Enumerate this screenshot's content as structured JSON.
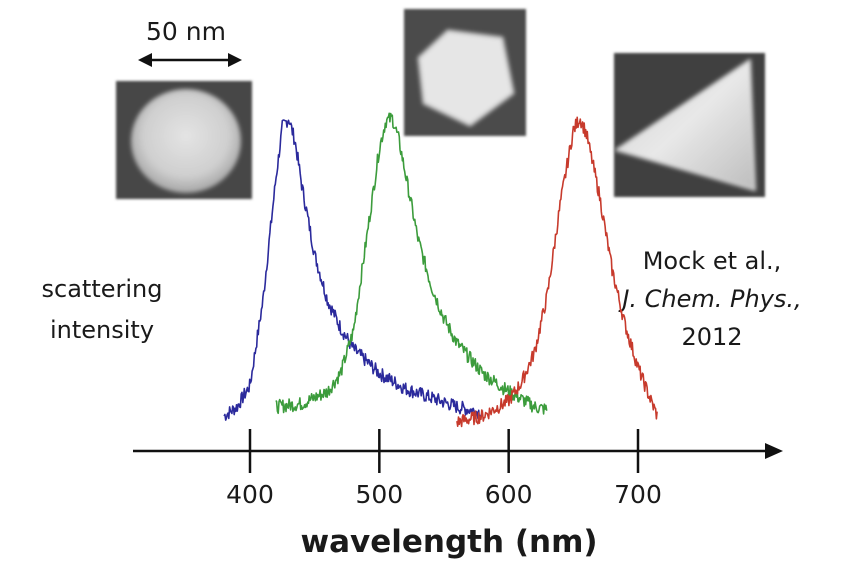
{
  "chart_data": {
    "type": "line",
    "xlabel": "wavelength (nm)",
    "ylabel": "scattering intensity",
    "ylabel_lines": [
      "scattering",
      "intensity"
    ],
    "xlim": [
      300,
      800
    ],
    "ylim": [
      0,
      1
    ],
    "xticks": [
      400,
      500,
      600,
      700
    ],
    "xtick_labels": [
      "400",
      "500",
      "600",
      "700"
    ],
    "grid": false,
    "series": [
      {
        "color": "#2b2a9c",
        "shape": "sphere",
        "x": [
          380,
          390,
          400,
          410,
          420,
          425,
          430,
          435,
          440,
          450,
          460,
          470,
          480,
          500,
          520,
          540,
          560,
          580
        ],
        "y": [
          0.02,
          0.05,
          0.12,
          0.4,
          0.8,
          0.97,
          1.0,
          0.92,
          0.78,
          0.55,
          0.4,
          0.31,
          0.24,
          0.16,
          0.11,
          0.08,
          0.05,
          0.03
        ]
      },
      {
        "color": "#3c9c3c",
        "shape": "pentagonal bipyramid",
        "x": [
          420,
          440,
          460,
          470,
          480,
          490,
          500,
          505,
          510,
          515,
          520,
          530,
          540,
          550,
          560,
          580,
          600,
          620,
          630
        ],
        "y": [
          0.05,
          0.06,
          0.1,
          0.16,
          0.3,
          0.6,
          0.9,
          0.99,
          1.0,
          0.93,
          0.82,
          0.6,
          0.45,
          0.34,
          0.26,
          0.16,
          0.1,
          0.05,
          0.04
        ]
      },
      {
        "color": "#c73a2c",
        "shape": "triangular plate",
        "x": [
          560,
          580,
          600,
          610,
          620,
          630,
          640,
          650,
          655,
          660,
          670,
          680,
          690,
          700,
          710,
          715
        ],
        "y": [
          0.0,
          0.02,
          0.07,
          0.13,
          0.23,
          0.42,
          0.72,
          0.96,
          1.0,
          0.95,
          0.75,
          0.5,
          0.32,
          0.18,
          0.07,
          0.02
        ]
      }
    ],
    "annotations": {
      "scale_bar": "50 nm",
      "citation_lines": [
        "Mock et al.,",
        "J. Chem. Phys.,",
        "2012"
      ],
      "citation_journal": "J. Chem. Phys."
    }
  },
  "colors": {
    "axis": "#111111",
    "blue": "#2b2a9c",
    "green": "#3c9c3c",
    "red": "#c73a2c",
    "micrograph_bg": "#4a4a4a",
    "particle": "#d9d9d9"
  },
  "images": [
    {
      "icon": "sphere-nanoparticle-micrograph"
    },
    {
      "icon": "pentagon-nanoparticle-micrograph"
    },
    {
      "icon": "triangle-nanoparticle-micrograph"
    }
  ]
}
